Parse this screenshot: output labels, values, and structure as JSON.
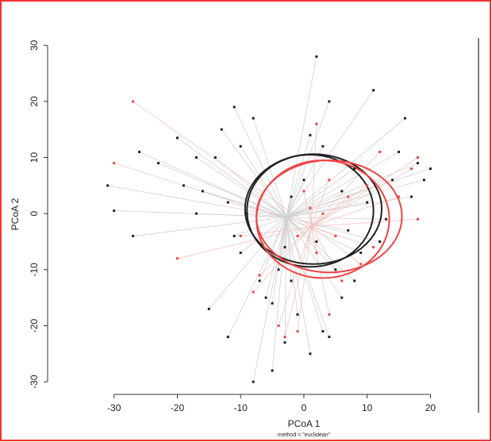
{
  "chart_data": {
    "type": "scatter",
    "xlabel": "PCoA 1",
    "ylabel": "PCoA 2",
    "note": "method = \"euclidean\"",
    "xlim": [
      -40.5,
      27.6
    ],
    "ylim": [
      -35.5,
      31.3
    ],
    "xticks": [
      -30,
      -20,
      -10,
      0,
      10,
      20
    ],
    "yticks": [
      -30,
      -20,
      -10,
      0,
      10,
      20,
      30
    ],
    "series": [
      {
        "color": "#222222",
        "x": [
          -31,
          -30,
          -27,
          -26,
          -23,
          -20,
          -19,
          -17,
          -17,
          -16,
          -14,
          -13,
          -12,
          -11,
          -11,
          -10,
          -10,
          -9,
          -8,
          -7,
          -6,
          -5,
          -4,
          -3,
          -2,
          -1,
          0,
          1,
          2,
          2,
          3,
          4,
          5,
          6,
          7,
          8,
          9,
          10,
          11,
          12,
          13,
          14,
          15,
          16,
          17,
          18,
          19,
          20,
          -5,
          -15,
          -12,
          -8,
          1,
          4,
          -3,
          6,
          3,
          -2,
          8
        ],
        "values": [
          5,
          0.5,
          -4,
          11,
          9,
          13.5,
          5,
          10,
          0,
          4,
          10,
          15,
          2,
          19,
          -4,
          -7,
          12,
          0,
          17,
          -12,
          -15,
          -28,
          -10,
          -6,
          3,
          -18,
          6,
          14,
          28,
          -5,
          -21,
          20,
          -10,
          4,
          -3,
          8,
          -7,
          2,
          22,
          -5,
          -1,
          6,
          11,
          17,
          3,
          9,
          6,
          8,
          -16,
          -17,
          -22,
          -30,
          -25,
          -22,
          -23,
          -15,
          12,
          -12,
          -12
        ]
      },
      {
        "color": "#ee4444",
        "x": [
          -30,
          -27,
          -20,
          -10,
          -8,
          -7,
          -4,
          -3,
          -1,
          0,
          1,
          2,
          2,
          3,
          4,
          5,
          6,
          7,
          9,
          10,
          11,
          12,
          15,
          17,
          18,
          18,
          -1,
          4
        ],
        "values": [
          9,
          20,
          -8,
          -4,
          -14,
          -11,
          -20,
          -22,
          -21,
          4,
          1,
          16,
          -7,
          0,
          6,
          -4,
          -12,
          3,
          -9,
          5,
          -6,
          11,
          3,
          8,
          10,
          -1,
          -4,
          -18
        ]
      }
    ],
    "ellipses": [
      {
        "color": "#222222",
        "cx": 1,
        "cy": 0.5,
        "rx": 10,
        "ry": 10
      },
      {
        "color": "#222222",
        "cx": 1.5,
        "cy": 0.8,
        "rx": 10.8,
        "ry": 9.8
      },
      {
        "color": "#ee4444",
        "cx": 3,
        "cy": -1,
        "rx": 10.5,
        "ry": 10.5
      },
      {
        "color": "#ee4444",
        "cx": 4,
        "cy": -0.5,
        "rx": 11.5,
        "ry": 10
      }
    ]
  }
}
